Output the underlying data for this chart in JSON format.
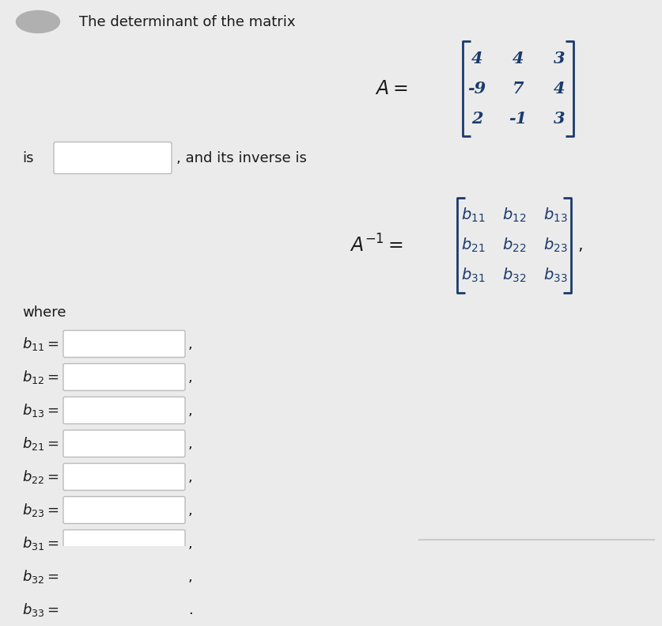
{
  "bg_color": "#ebebeb",
  "title_text": "The determinant of the matrix",
  "matrix_A": [
    [
      4,
      4,
      3
    ],
    [
      -9,
      7,
      4
    ],
    [
      2,
      -1,
      3
    ]
  ],
  "b_labels_latex": [
    "b_{11}",
    "b_{12}",
    "b_{13}",
    "b_{21}",
    "b_{22}",
    "b_{23}",
    "b_{31}",
    "b_{32}",
    "b_{33}"
  ],
  "b_separators": [
    ",",
    ",",
    ",",
    ",",
    ",",
    ",",
    ",",
    ",",
    "."
  ],
  "text_color": "#1a1a1a",
  "matrix_color": "#1a3a6b",
  "input_box_color": "#ffffff",
  "input_box_edge_color": "#bbbbbb",
  "font_size_title": 13,
  "font_size_matrix": 15,
  "font_size_label": 13
}
